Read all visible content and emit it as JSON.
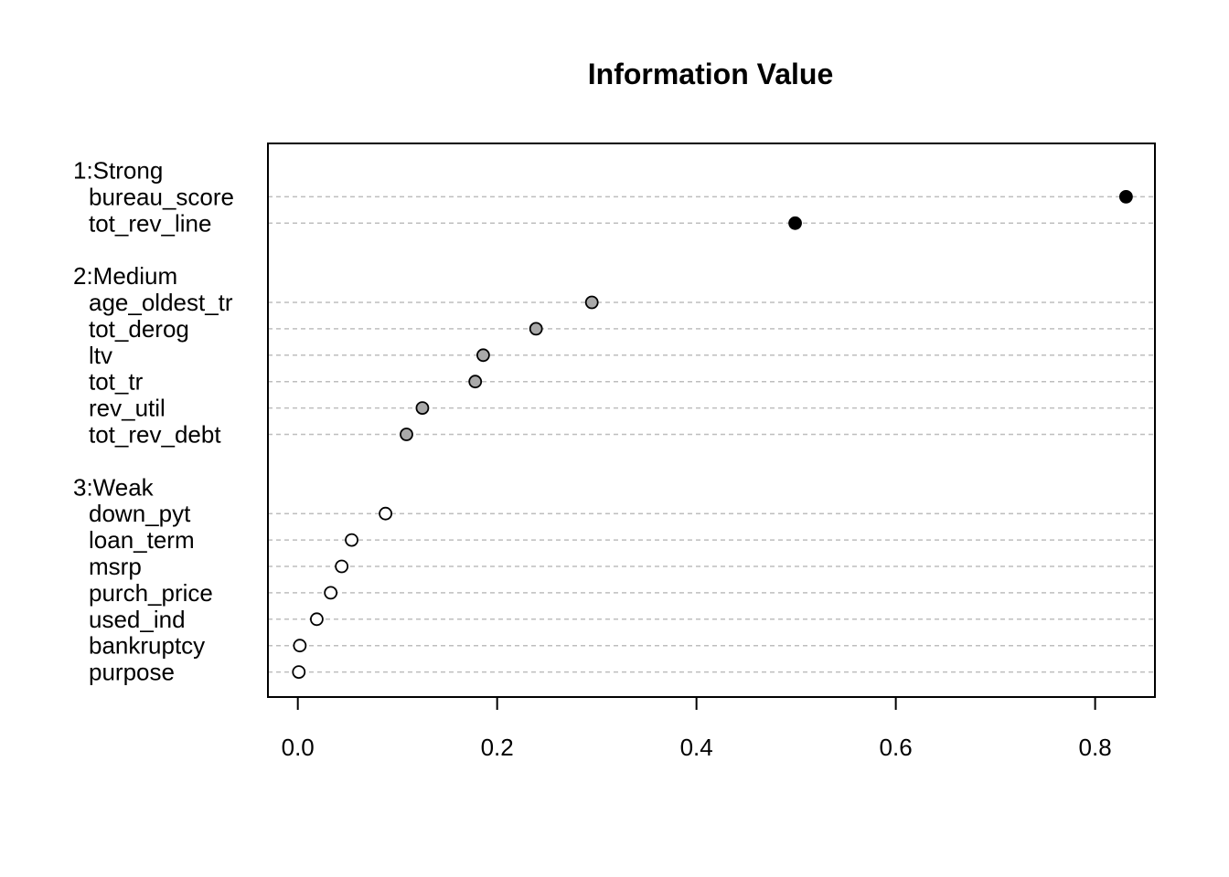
{
  "chart_data": {
    "type": "scatter",
    "title": "Information Value",
    "xlabel": "",
    "ylabel": "",
    "xlim": [
      -0.03,
      0.86
    ],
    "x_ticks": [
      "0.0",
      "0.2",
      "0.4",
      "0.6",
      "0.8"
    ],
    "x_tick_values": [
      0.0,
      0.2,
      0.4,
      0.6,
      0.8
    ],
    "grid": "dashed horizontal guide per variable",
    "groups": [
      {
        "name": "1:Strong",
        "color": "#000000",
        "items": [
          {
            "label": "bureau_score",
            "value": 0.831
          },
          {
            "label": "tot_rev_line",
            "value": 0.499
          }
        ]
      },
      {
        "name": "2:Medium",
        "color": "#a9a9a9",
        "items": [
          {
            "label": "age_oldest_tr",
            "value": 0.295
          },
          {
            "label": "tot_derog",
            "value": 0.239
          },
          {
            "label": "ltv",
            "value": 0.186
          },
          {
            "label": "tot_tr",
            "value": 0.178
          },
          {
            "label": "rev_util",
            "value": 0.125
          },
          {
            "label": "tot_rev_debt",
            "value": 0.109
          }
        ]
      },
      {
        "name": "3:Weak",
        "color": "#ffffff",
        "items": [
          {
            "label": "down_pyt",
            "value": 0.088
          },
          {
            "label": "loan_term",
            "value": 0.054
          },
          {
            "label": "msrp",
            "value": 0.044
          },
          {
            "label": "purch_price",
            "value": 0.033
          },
          {
            "label": "used_ind",
            "value": 0.019
          },
          {
            "label": "bankruptcy",
            "value": 0.002
          },
          {
            "label": "purpose",
            "value": 0.001
          }
        ]
      }
    ]
  }
}
